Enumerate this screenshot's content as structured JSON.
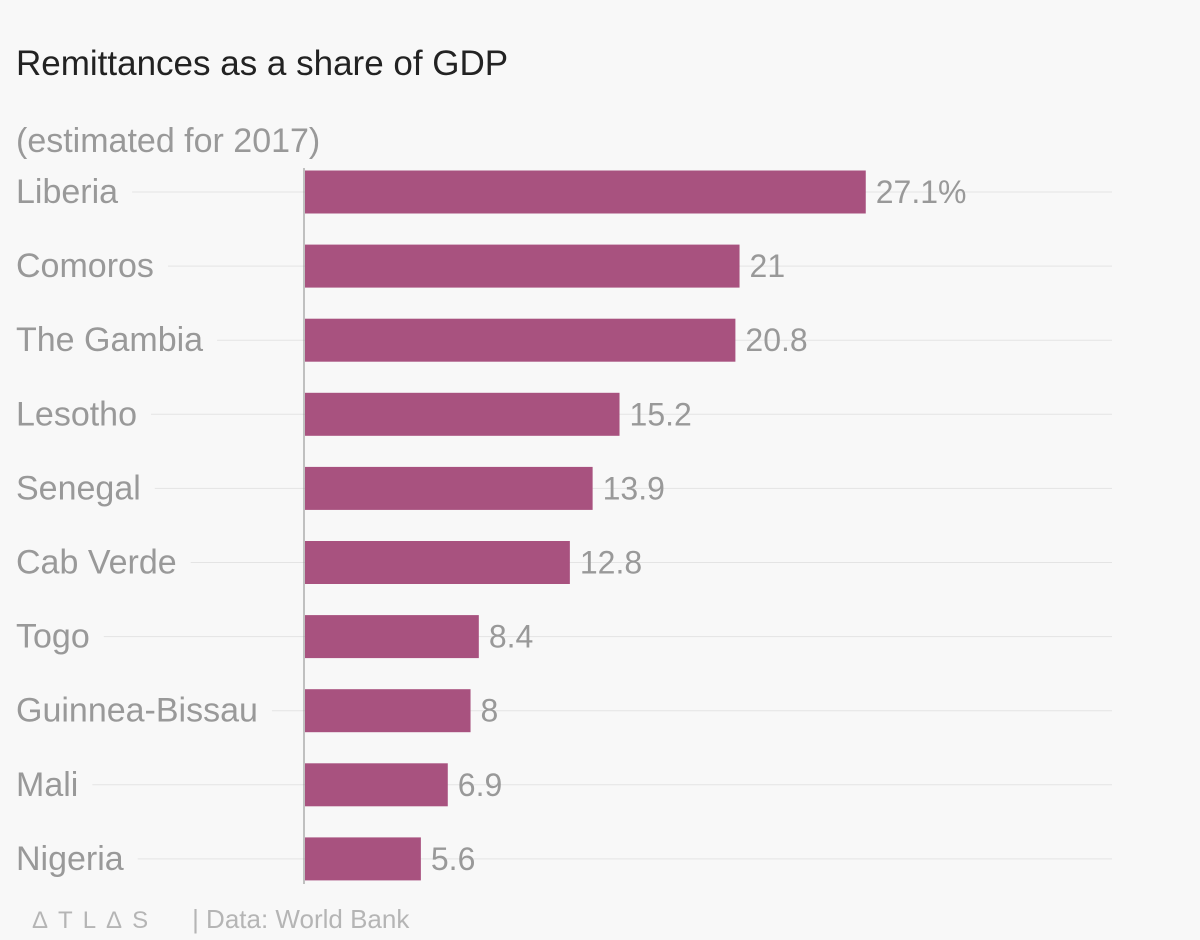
{
  "chart_data": {
    "type": "bar",
    "orientation": "horizontal",
    "title": "Remittances as a share of GDP",
    "subtitle": "(estimated for 2017)",
    "categories": [
      "Liberia",
      "Comoros",
      "The Gambia",
      "Lesotho",
      "Senegal",
      "Cab Verde",
      "Togo",
      "Guinnea-Bissau",
      "Mali",
      "Nigeria"
    ],
    "values": [
      27.1,
      21,
      20.8,
      15.2,
      13.9,
      12.8,
      8.4,
      8,
      6.9,
      5.6
    ],
    "value_labels": [
      "27.1%",
      "21",
      "20.8",
      "15.2",
      "13.9",
      "12.8",
      "8.4",
      "8",
      "6.9",
      "5.6"
    ],
    "xlim": [
      0,
      39
    ],
    "bar_color": "#a8527f",
    "grid": true
  },
  "footer": {
    "logo": "ΔTLΔS",
    "source": "| Data: World Bank"
  }
}
